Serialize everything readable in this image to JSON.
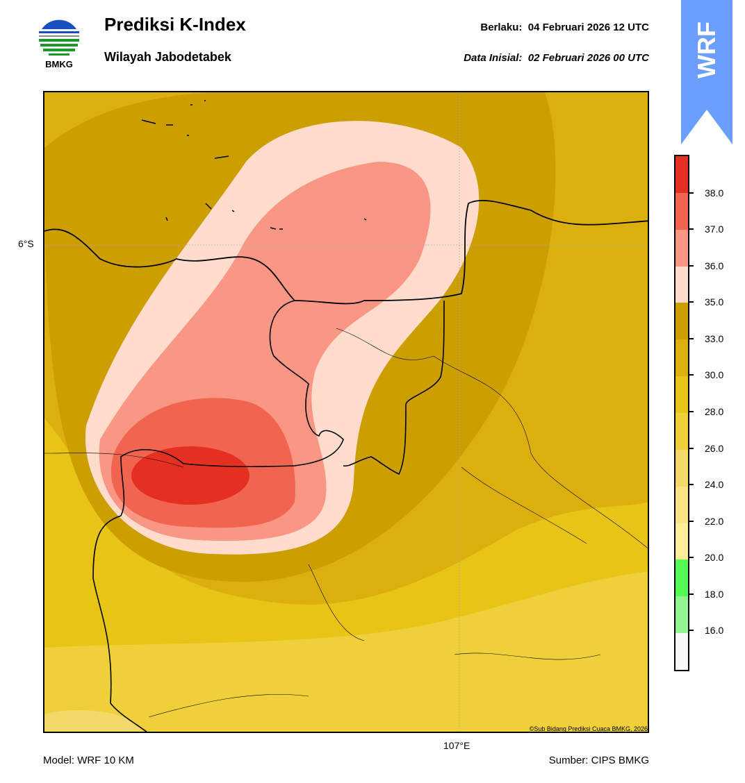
{
  "header": {
    "logo_text": "BMKG",
    "title": "Prediksi K-Index",
    "subtitle": "Wilayah Jabodetabek",
    "valid_label": "Berlaku:",
    "valid_value": "04 Februari 2026 12 UTC",
    "init_label": "Data Inisial:",
    "init_value": "02 Februari 2026 00 UTC",
    "badge": "WRF"
  },
  "map": {
    "lat_label": "6°S",
    "lon_label": "107°E",
    "copyright": "©Sub Bidang Prediksi Cuaca BMKG, 2026"
  },
  "colorbar": {
    "ticks": [
      "38.0",
      "37.0",
      "36.0",
      "35.0",
      "33.0",
      "30.0",
      "28.0",
      "26.0",
      "24.0",
      "22.0",
      "20.0",
      "18.0",
      "16.0"
    ],
    "colors": [
      "#e43020",
      "#f06450",
      "#f99684",
      "#ffdccb",
      "#cc9e00",
      "#dbb00e",
      "#e8c417",
      "#efd03a",
      "#f5d86a",
      "#f9e384",
      "#fdee9a",
      "#55fa55",
      "#90f590",
      "#f8f8f8"
    ]
  },
  "footer": {
    "model": "Model: WRF 10 KM",
    "source": "Sumber: CIPS BMKG"
  }
}
